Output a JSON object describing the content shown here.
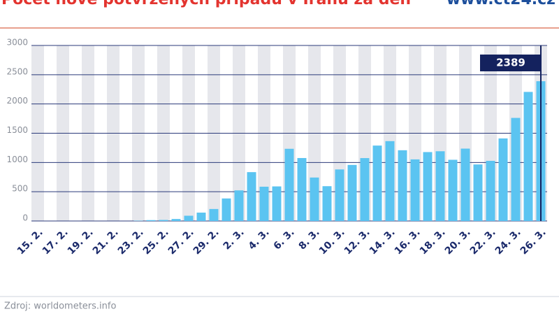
{
  "chart_data": {
    "type": "bar",
    "title": "Počet nově potvrzených případů v Íránu za den",
    "brand": "www.ct24.cz",
    "source": "Zdroj: worldometers.info",
    "annotation": "2389",
    "color": "#5bc4f1",
    "categories": [
      "15. 2.",
      null,
      "17. 2.",
      null,
      "19. 2.",
      null,
      "21. 2.",
      null,
      "23. 2.",
      null,
      "25. 2.",
      null,
      "27. 2.",
      null,
      "29. 2.",
      null,
      "2. 3.",
      null,
      "4. 3.",
      null,
      "6. 3.",
      null,
      "8. 3.",
      null,
      "10. 3.",
      null,
      "12. 3.",
      null,
      "14. 3.",
      null,
      "16. 3.",
      null,
      "18. 3.",
      null,
      "20. 3.",
      null,
      "22. 3.",
      null,
      "24. 3.",
      null,
      "26. 3."
    ],
    "values": [
      0,
      0,
      0,
      0,
      0,
      0,
      0,
      0,
      5,
      15,
      18,
      34,
      90,
      143,
      205,
      385,
      523,
      835,
      586,
      591,
      1234,
      1076,
      743,
      595,
      881,
      958,
      1075,
      1289,
      1365,
      1209,
      1053,
      1178,
      1192,
      1046,
      1237,
      966,
      1028,
      1411,
      1762,
      2206,
      2389
    ],
    "ylim": [
      0,
      3000
    ],
    "yticks": [
      0,
      500,
      1000,
      1500,
      2000,
      2500,
      3000
    ],
    "grid": true
  }
}
